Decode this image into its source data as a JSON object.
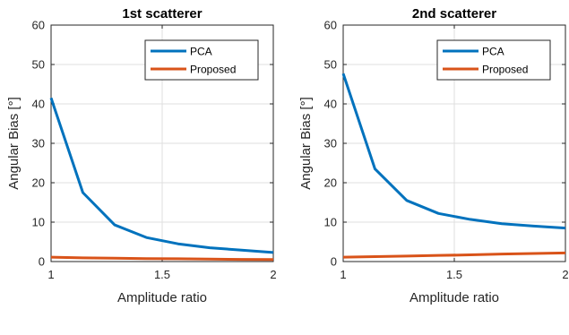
{
  "chart_data": [
    {
      "type": "line",
      "title": "1st scatterer",
      "xlabel": "Amplitude ratio",
      "ylabel": "Angular Bias [°]",
      "xlim": [
        1,
        2
      ],
      "ylim": [
        0,
        60
      ],
      "xticks": [
        1,
        1.5,
        2
      ],
      "xtick_labels": [
        "1",
        "1.5",
        "2"
      ],
      "yticks": [
        0,
        10,
        20,
        30,
        40,
        50,
        60
      ],
      "ytick_labels": [
        "0",
        "10",
        "20",
        "30",
        "40",
        "50",
        "60"
      ],
      "grid": true,
      "legend_position": "top-right",
      "x": [
        1,
        1.143,
        1.286,
        1.429,
        1.571,
        1.714,
        1.857,
        2
      ],
      "series": [
        {
          "name": "PCA",
          "color": "#0072BD",
          "values": [
            41.5,
            17.5,
            9.3,
            6.1,
            4.5,
            3.5,
            2.9,
            2.3
          ]
        },
        {
          "name": "Proposed",
          "color": "#D95319",
          "values": [
            1.1,
            0.95,
            0.85,
            0.75,
            0.7,
            0.62,
            0.55,
            0.5
          ]
        }
      ]
    },
    {
      "type": "line",
      "title": "2nd scatterer",
      "xlabel": "Amplitude ratio",
      "ylabel": "Angular Bias [°]",
      "xlim": [
        1,
        2
      ],
      "ylim": [
        0,
        60
      ],
      "xticks": [
        1,
        1.5,
        2
      ],
      "xtick_labels": [
        "1",
        "1.5",
        "2"
      ],
      "yticks": [
        0,
        10,
        20,
        30,
        40,
        50,
        60
      ],
      "ytick_labels": [
        "0",
        "10",
        "20",
        "30",
        "40",
        "50",
        "60"
      ],
      "grid": true,
      "legend_position": "top-right",
      "x": [
        1,
        1.143,
        1.286,
        1.429,
        1.571,
        1.714,
        1.857,
        2
      ],
      "series": [
        {
          "name": "PCA",
          "color": "#0072BD",
          "values": [
            47.7,
            23.5,
            15.5,
            12.2,
            10.7,
            9.6,
            9.0,
            8.5
          ]
        },
        {
          "name": "Proposed",
          "color": "#D95319",
          "values": [
            1.1,
            1.25,
            1.4,
            1.55,
            1.7,
            1.9,
            2.05,
            2.2
          ]
        }
      ]
    }
  ]
}
